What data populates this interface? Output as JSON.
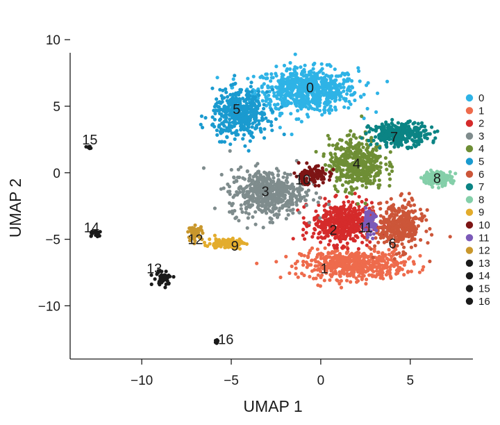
{
  "chart_data": {
    "type": "scatter",
    "title": "",
    "xlabel": "UMAP 1",
    "ylabel": "UMAP 2",
    "xlim": [
      -14,
      8.5
    ],
    "ylim": [
      -14,
      11
    ],
    "xticks": [
      -10,
      -5,
      0,
      5
    ],
    "yticks": [
      10,
      5,
      0,
      -5,
      -10
    ],
    "xtick_labels": [
      "−10",
      "−5",
      "0",
      "5"
    ],
    "ytick_labels": [
      "10",
      "5",
      "0",
      "−5",
      "−10"
    ],
    "grid": false,
    "legend_position": "right",
    "clusters": [
      {
        "name": "0",
        "color": "#2EB3E6",
        "label_pos": [
          -0.6,
          6.4
        ],
        "center": [
          -0.8,
          6.2
        ],
        "spread": [
          2.6,
          1.5
        ],
        "n": 700
      },
      {
        "name": "1",
        "color": "#EE6B4C",
        "label_pos": [
          0.2,
          -7.2
        ],
        "center": [
          1.8,
          -6.9
        ],
        "spread": [
          2.6,
          1.0
        ],
        "n": 520
      },
      {
        "name": "2",
        "color": "#D52B2B",
        "label_pos": [
          0.7,
          -4.3
        ],
        "center": [
          1.2,
          -3.8
        ],
        "spread": [
          1.5,
          1.4
        ],
        "n": 480
      },
      {
        "name": "3",
        "color": "#7F8C8D",
        "label_pos": [
          -3.1,
          -1.4
        ],
        "center": [
          -3.0,
          -1.5
        ],
        "spread": [
          1.9,
          1.6
        ],
        "n": 520
      },
      {
        "name": "4",
        "color": "#6E8E35",
        "label_pos": [
          2.0,
          0.7
        ],
        "center": [
          2.0,
          0.7
        ],
        "spread": [
          1.4,
          1.8
        ],
        "n": 440
      },
      {
        "name": "5",
        "color": "#1A9ACF",
        "label_pos": [
          -4.7,
          4.8
        ],
        "center": [
          -4.5,
          4.4
        ],
        "spread": [
          1.4,
          1.6
        ],
        "n": 430
      },
      {
        "name": "6",
        "color": "#CC5639",
        "label_pos": [
          4.0,
          -5.3
        ],
        "center": [
          4.4,
          -4.0
        ],
        "spread": [
          1.2,
          1.6
        ],
        "n": 360
      },
      {
        "name": "7",
        "color": "#0B8484",
        "label_pos": [
          4.1,
          2.7
        ],
        "center": [
          4.4,
          2.9
        ],
        "spread": [
          1.5,
          0.8
        ],
        "n": 300
      },
      {
        "name": "8",
        "color": "#84CFA9",
        "label_pos": [
          6.5,
          -0.4
        ],
        "center": [
          6.5,
          -0.4
        ],
        "spread": [
          0.75,
          0.45
        ],
        "n": 160
      },
      {
        "name": "9",
        "color": "#E3AC2C",
        "label_pos": [
          -4.8,
          -5.5
        ],
        "center": [
          -5.3,
          -5.3
        ],
        "spread": [
          0.9,
          0.35
        ],
        "n": 120
      },
      {
        "name": "10",
        "color": "#7D1515",
        "label_pos": [
          -1.0,
          -0.5
        ],
        "center": [
          -0.5,
          -0.2
        ],
        "spread": [
          0.9,
          0.6
        ],
        "n": 110
      },
      {
        "name": "11",
        "color": "#7B5AB8",
        "label_pos": [
          2.5,
          -4.1
        ],
        "center": [
          2.7,
          -3.8
        ],
        "spread": [
          0.35,
          0.8
        ],
        "n": 70
      },
      {
        "name": "12",
        "color": "#C9972C",
        "label_pos": [
          -7.0,
          -5.0
        ],
        "center": [
          -7.0,
          -4.5
        ],
        "spread": [
          0.35,
          0.45
        ],
        "n": 60
      },
      {
        "name": "13",
        "color": "#1A1A1A",
        "label_pos": [
          -9.3,
          -7.2
        ],
        "center": [
          -8.8,
          -7.9
        ],
        "spread": [
          0.5,
          0.5
        ],
        "n": 40
      },
      {
        "name": "14",
        "color": "#1A1A1A",
        "label_pos": [
          -12.8,
          -4.1
        ],
        "center": [
          -12.6,
          -4.6
        ],
        "spread": [
          0.4,
          0.3
        ],
        "n": 18
      },
      {
        "name": "15",
        "color": "#1A1A1A",
        "label_pos": [
          -12.9,
          2.5
        ],
        "center": [
          -12.9,
          1.9
        ],
        "spread": [
          0.2,
          0.12
        ],
        "n": 10
      },
      {
        "name": "16",
        "color": "#1A1A1A",
        "label_pos": [
          -5.3,
          -12.5
        ],
        "center": [
          -5.8,
          -12.7
        ],
        "spread": [
          0.08,
          0.18
        ],
        "n": 8
      }
    ]
  }
}
